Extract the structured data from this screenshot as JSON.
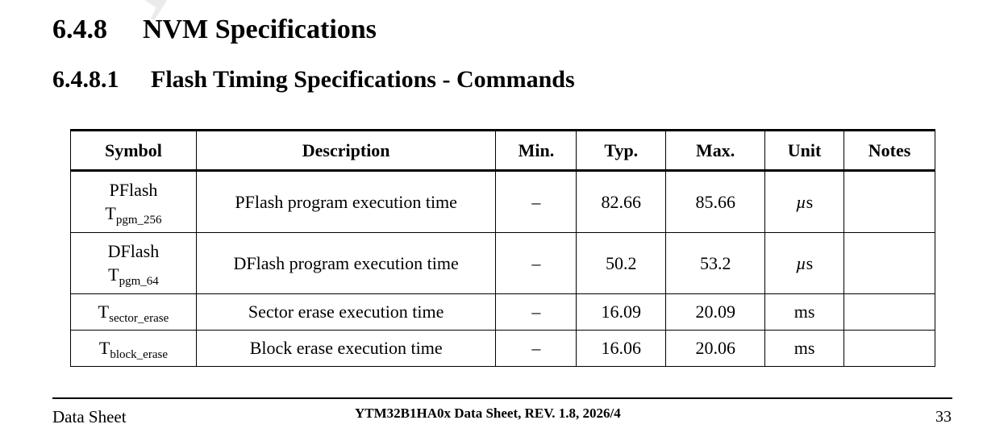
{
  "section": {
    "number": "6.4.8",
    "title": "NVM Specifications"
  },
  "subsection": {
    "number": "6.4.8.1",
    "title": "Flash Timing Specifications - Commands"
  },
  "table": {
    "headers": [
      "Symbol",
      "Description",
      "Min.",
      "Typ.",
      "Max.",
      "Unit",
      "Notes"
    ],
    "rows": [
      {
        "symbol_name": "PFlash",
        "symbol_base": "T",
        "symbol_sub": "pgm_256",
        "description": "PFlash program execution time",
        "min": "–",
        "typ": "82.66",
        "max": "85.66",
        "unit_mu": "µ",
        "unit": "s",
        "notes": ""
      },
      {
        "symbol_name": "DFlash",
        "symbol_base": "T",
        "symbol_sub": "pgm_64",
        "description": "DFlash program execution time",
        "min": "–",
        "typ": "50.2",
        "max": "53.2",
        "unit_mu": "µ",
        "unit": "s",
        "notes": ""
      },
      {
        "symbol_name": "",
        "symbol_base": "T",
        "symbol_sub": "sector_erase",
        "description": "Sector erase execution time",
        "min": "–",
        "typ": "16.09",
        "max": "20.09",
        "unit_mu": "",
        "unit": "ms",
        "notes": ""
      },
      {
        "symbol_name": "",
        "symbol_base": "T",
        "symbol_sub": "block_erase",
        "description": "Block erase execution time",
        "min": "–",
        "typ": "16.06",
        "max": "20.06",
        "unit_mu": "",
        "unit": "ms",
        "notes": ""
      }
    ]
  },
  "footer": {
    "left": "Data Sheet",
    "center": "YTM32B1HA0x Data Sheet, REV. 1.8, 2026/4",
    "page": "33"
  }
}
